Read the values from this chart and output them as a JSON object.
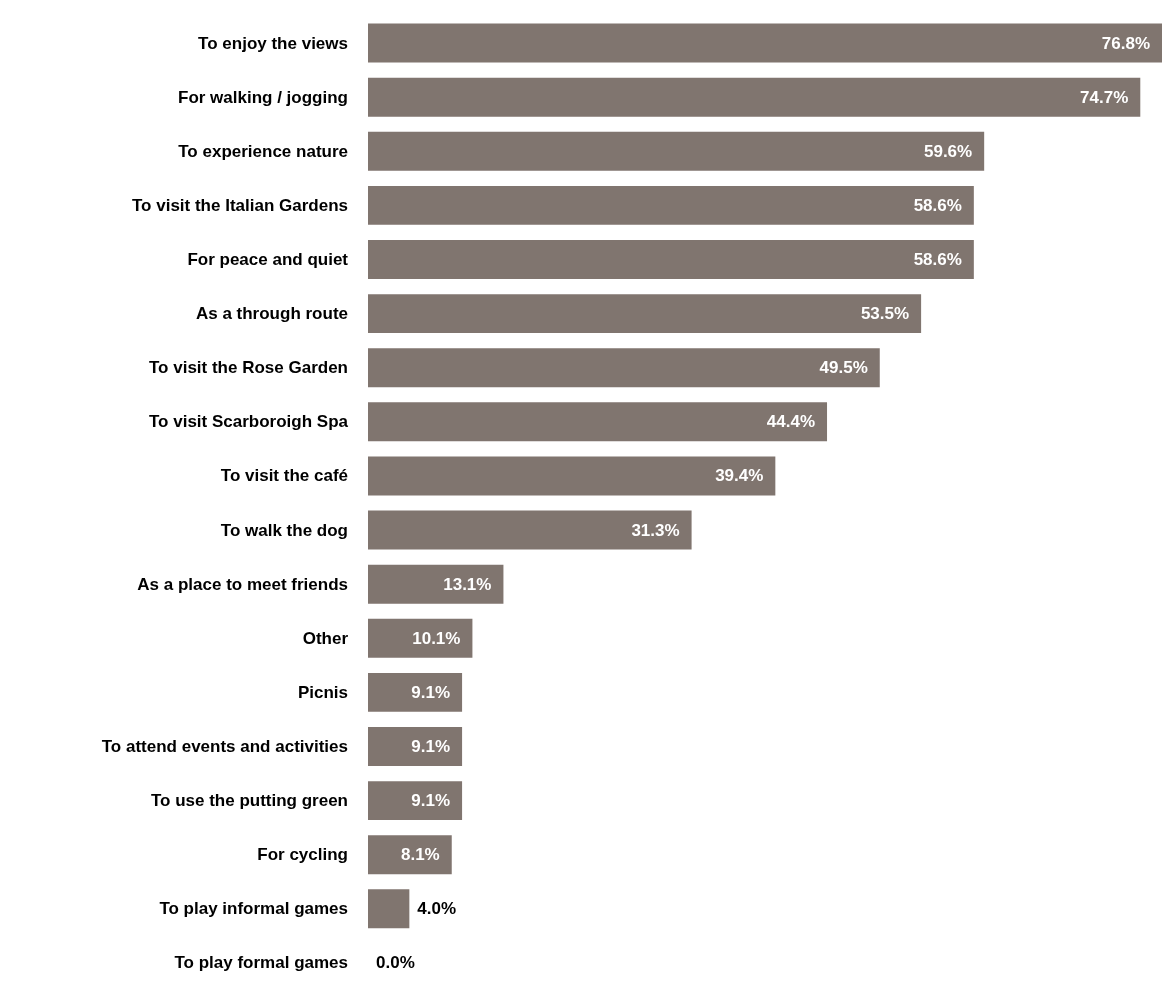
{
  "chart_data": {
    "type": "bar",
    "orientation": "horizontal",
    "color": "#80756f",
    "xlim": [
      0,
      76.8
    ],
    "tick_labels": "y",
    "categories": [
      "To enjoy the views",
      "For walking / jogging",
      "To experience nature",
      "To visit the Italian Gardens",
      "For peace and quiet",
      "As a through route",
      "To visit the Rose Garden",
      "To visit Scarboroigh Spa",
      "To visit the café",
      "To walk the dog",
      "As a place to meet friends",
      "Other",
      "Picnis",
      "To attend events and activities",
      "To use the putting green",
      "For cycling",
      "To play informal games",
      "To play formal games"
    ],
    "values": [
      76.8,
      74.7,
      59.6,
      58.6,
      58.6,
      53.5,
      49.5,
      44.4,
      39.4,
      31.3,
      13.1,
      10.1,
      9.1,
      9.1,
      9.1,
      8.1,
      4.0,
      0.0
    ],
    "value_labels": [
      "76.8%",
      "74.7%",
      "59.6%",
      "58.6%",
      "58.6%",
      "53.5%",
      "49.5%",
      "44.4%",
      "39.4%",
      "31.3%",
      "13.1%",
      "10.1%",
      "9.1%",
      "9.1%",
      "9.1%",
      "8.1%",
      "4.0%",
      "0.0%"
    ]
  }
}
